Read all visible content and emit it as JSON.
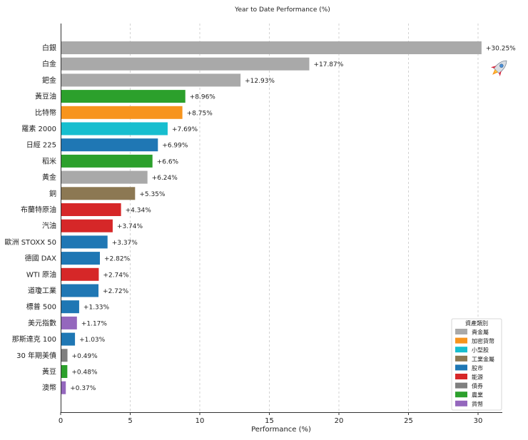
{
  "chart_data": {
    "type": "bar",
    "orientation": "horizontal",
    "title": "Year to Date Performance (%)",
    "xlabel": "Performance (%)",
    "ylabel": "",
    "xlim": [
      0,
      31.7
    ],
    "xticks": [
      0,
      5,
      10,
      15,
      20,
      25,
      30
    ],
    "grid": "x-dashed",
    "categories": [
      "白銀",
      "白金",
      "鈀金",
      "黃豆油",
      "比特幣",
      "羅素 2000",
      "日經 225",
      "稻米",
      "黃金",
      "銅",
      "布蘭特原油",
      "汽油",
      "歐洲 STOXX 50",
      "德國 DAX",
      "WTI 原油",
      "道瓊工業",
      "標普 500",
      "美元指數",
      "那斯達克 100",
      "30 年期美債",
      "黃豆",
      "澳幣"
    ],
    "values": [
      30.25,
      17.87,
      12.93,
      8.96,
      8.75,
      7.69,
      6.99,
      6.6,
      6.24,
      5.35,
      4.34,
      3.74,
      3.37,
      2.82,
      2.74,
      2.72,
      1.33,
      1.17,
      1.03,
      0.49,
      0.48,
      0.37
    ],
    "value_labels": [
      "+30.25%",
      "+17.87%",
      "+12.93%",
      "+8.96%",
      "+8.75%",
      "+7.69%",
      "+6.99%",
      "+6.6%",
      "+6.24%",
      "+5.35%",
      "+4.34%",
      "+3.74%",
      "+3.37%",
      "+2.82%",
      "+2.74%",
      "+2.72%",
      "+1.33%",
      "+1.17%",
      "+1.03%",
      "+0.49%",
      "+0.48%",
      "+0.37%"
    ],
    "groups": [
      "貴金屬",
      "貴金屬",
      "貴金屬",
      "農業",
      "加密貨幣",
      "小型股",
      "股市",
      "農業",
      "貴金屬",
      "工業金屬",
      "能源",
      "能源",
      "股市",
      "股市",
      "能源",
      "股市",
      "股市",
      "貨幣",
      "股市",
      "債券",
      "農業",
      "貨幣"
    ],
    "legend": {
      "title": "資產類別",
      "position": "lower-right",
      "entries": [
        {
          "name": "貴金屬",
          "color": "#a9a9a9"
        },
        {
          "name": "加密貨幣",
          "color": "#f7941d"
        },
        {
          "name": "小型股",
          "color": "#17becf"
        },
        {
          "name": "工業金屬",
          "color": "#8c7853"
        },
        {
          "name": "股市",
          "color": "#1f77b4"
        },
        {
          "name": "能源",
          "color": "#d62728"
        },
        {
          "name": "債券",
          "color": "#7f7f7f"
        },
        {
          "name": "農業",
          "color": "#2ca02c"
        },
        {
          "name": "貨幣",
          "color": "#9467bd"
        }
      ]
    },
    "annotation_icon": "rocket-icon"
  }
}
